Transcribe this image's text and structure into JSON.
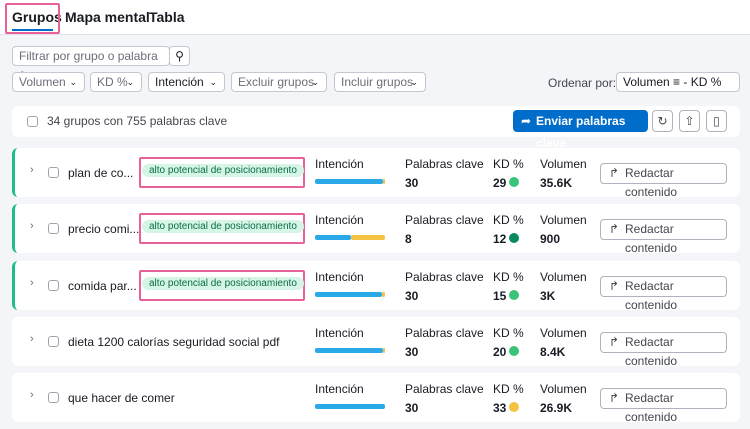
{
  "tabs": [
    "Grupos",
    "Mapa mental",
    "Tabla"
  ],
  "search_placeholder": "Filtrar por grupo o palabra c...",
  "filters": [
    "Volumen",
    "KD %",
    "Intención",
    "Excluir grupos",
    "Incluir grupos"
  ],
  "sort": {
    "label": "Ordenar por:",
    "value": "Volumen",
    "secondary": "- KD %"
  },
  "summary": "34 grupos con 755 palabras clave",
  "send_button": "Enviar palabras clave",
  "columns": {
    "intent": "Intención",
    "keywords": "Palabras clave",
    "kd": "KD %",
    "volume": "Volumen"
  },
  "action": "Redactar contenido",
  "intent_colors": [
    "#2ba8e8",
    "#f5c242"
  ],
  "rows": [
    {
      "name": "plan de co...",
      "tag": "alto potencial de posicionamiento",
      "intent_share": [
        97,
        3
      ],
      "keywords": 30,
      "kd": 29,
      "kd_color": "#3cc37a",
      "volume": "35.6K"
    },
    {
      "name": "precio comi...",
      "tag": "alto potencial de posicionamiento",
      "intent_share": [
        52,
        48
      ],
      "keywords": 8,
      "kd": 12,
      "kd_color": "#0a8a5f",
      "volume": "900"
    },
    {
      "name": "comida par...",
      "tag": "alto potencial de posicionamiento",
      "intent_share": [
        96,
        4
      ],
      "keywords": 30,
      "kd": 15,
      "kd_color": "#3cc37a",
      "volume": "3K"
    },
    {
      "name": "dieta 1200 calorías seguridad social pdf",
      "intent_share": [
        97,
        3
      ],
      "keywords": 30,
      "kd": 20,
      "kd_color": "#3cc37a",
      "volume": "8.4K"
    },
    {
      "name": "que hacer de comer",
      "intent_share": [
        100,
        0
      ],
      "keywords": 30,
      "kd": 33,
      "kd_color": "#f5c242",
      "volume": "26.9K"
    }
  ]
}
